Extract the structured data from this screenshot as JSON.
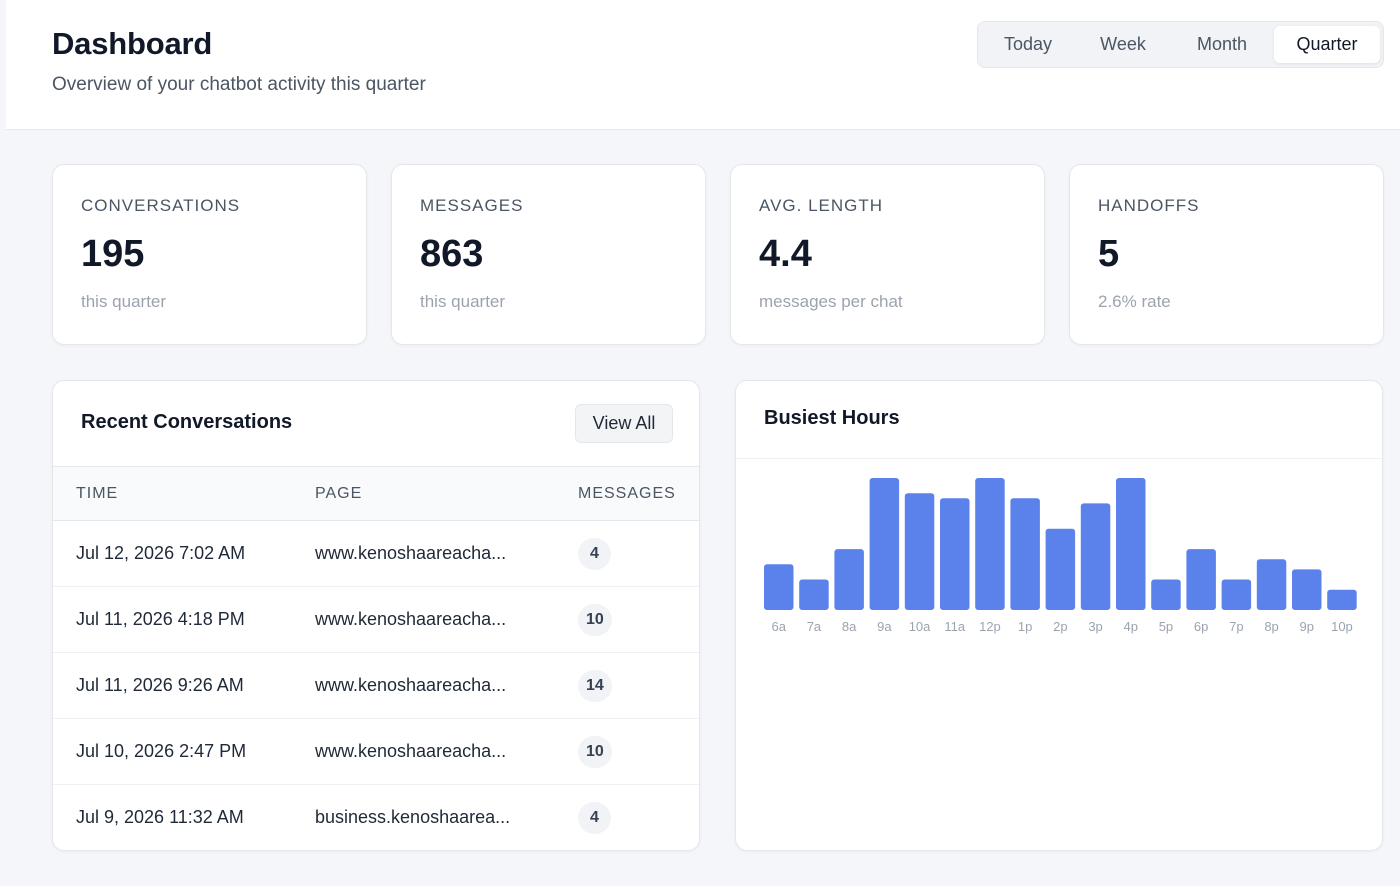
{
  "header": {
    "title": "Dashboard",
    "subtitle": "Overview of your chatbot activity this quarter",
    "ranges": [
      "Today",
      "Week",
      "Month",
      "Quarter"
    ],
    "active_range": "Quarter"
  },
  "stats": [
    {
      "label": "CONVERSATIONS",
      "value": "195",
      "note": "this quarter"
    },
    {
      "label": "MESSAGES",
      "value": "863",
      "note": "this quarter"
    },
    {
      "label": "AVG. LENGTH",
      "value": "4.4",
      "note": "messages per chat"
    },
    {
      "label": "HANDOFFS",
      "value": "5",
      "note": "2.6% rate"
    }
  ],
  "recent": {
    "title": "Recent Conversations",
    "view_all": "View All",
    "columns": [
      "TIME",
      "PAGE",
      "MESSAGES"
    ],
    "rows": [
      {
        "time": "Jul 12, 2026 7:02 AM",
        "page": "www.kenoshaareacha...",
        "messages": "4"
      },
      {
        "time": "Jul 11, 2026 4:18 PM",
        "page": "www.kenoshaareacha...",
        "messages": "10"
      },
      {
        "time": "Jul 11, 2026 9:26 AM",
        "page": "www.kenoshaareacha...",
        "messages": "14"
      },
      {
        "time": "Jul 10, 2026 2:47 PM",
        "page": "www.kenoshaareacha...",
        "messages": "10"
      },
      {
        "time": "Jul 9, 2026 11:32 AM",
        "page": "business.kenoshaarea...",
        "messages": "4"
      }
    ]
  },
  "busiest": {
    "title": "Busiest Hours"
  },
  "chart_data": {
    "type": "bar",
    "title": "Busiest Hours",
    "categories": [
      "6a",
      "7a",
      "8a",
      "9a",
      "10a",
      "11a",
      "12p",
      "1p",
      "2p",
      "3p",
      "4p",
      "5p",
      "6p",
      "7p",
      "8p",
      "9p",
      "10p"
    ],
    "values": [
      9,
      6,
      12,
      26,
      23,
      22,
      26,
      22,
      16,
      21,
      26,
      6,
      12,
      6,
      10,
      8,
      4
    ],
    "ylim": [
      0,
      26
    ],
    "grid": false,
    "legend": "none",
    "bar_color": "#5b82ea"
  }
}
